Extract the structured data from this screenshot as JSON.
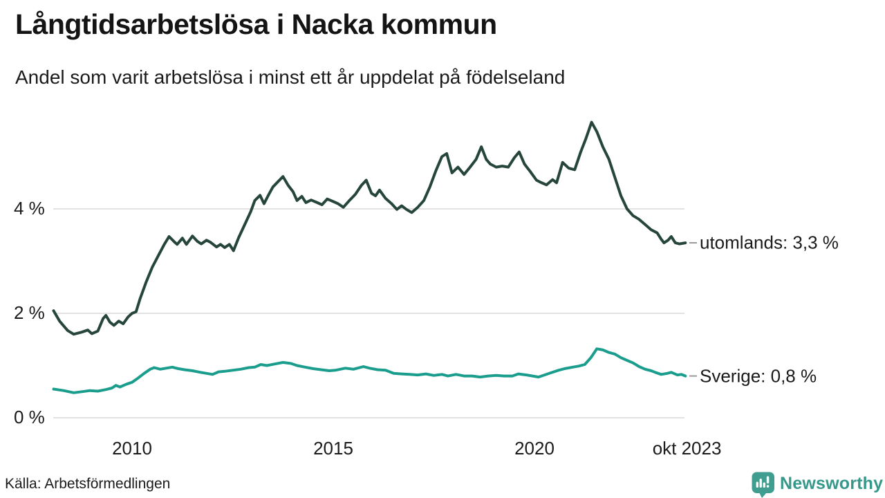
{
  "header": {
    "title": "Långtidsarbetslösa i Nacka kommun",
    "subtitle": "Andel som varit arbetslösa i minst ett år uppdelat på födelseland"
  },
  "footer": {
    "source": "Källa: Arbetsförmedlingen",
    "brand": "Newsworthy"
  },
  "colors": {
    "utomlands_line": "#26453b",
    "sverige_line": "#1a9d8d",
    "grid": "#e2e2e2",
    "text": "#1a1a1a",
    "label_dash": "#999999",
    "brand_teal": "#35988a"
  },
  "chart_data": {
    "type": "line",
    "title": "Långtidsarbetslösa i Nacka kommun",
    "subtitle": "Andel som varit arbetslösa i minst ett år uppdelat på födelseland",
    "xlabel": "",
    "ylabel": "",
    "unit": "%",
    "xlim": [
      2008.05,
      2023.79
    ],
    "ylim": [
      0,
      5.9
    ],
    "grid": "horizontal",
    "legend_position": "right-end-labels",
    "yticks": [
      {
        "value": 0,
        "label": "0 %"
      },
      {
        "value": 2,
        "label": "2 %"
      },
      {
        "value": 4,
        "label": "4 %"
      }
    ],
    "xticks": [
      {
        "value": 2010,
        "label": "2010"
      },
      {
        "value": 2015,
        "label": "2015"
      },
      {
        "value": 2020,
        "label": "2020"
      },
      {
        "value": 2023.79,
        "label": "okt 2023"
      }
    ],
    "series": [
      {
        "name": "utomlands",
        "end_label": "utomlands: 3,3 %",
        "last_value": "3,3 %",
        "color": "#26453b",
        "points": [
          [
            2008.05,
            2.05
          ],
          [
            2008.2,
            1.85
          ],
          [
            2008.4,
            1.67
          ],
          [
            2008.55,
            1.6
          ],
          [
            2008.75,
            1.64
          ],
          [
            2008.9,
            1.68
          ],
          [
            2009.0,
            1.61
          ],
          [
            2009.15,
            1.66
          ],
          [
            2009.28,
            1.9
          ],
          [
            2009.35,
            1.96
          ],
          [
            2009.45,
            1.83
          ],
          [
            2009.55,
            1.77
          ],
          [
            2009.67,
            1.85
          ],
          [
            2009.78,
            1.8
          ],
          [
            2009.9,
            1.93
          ],
          [
            2010.0,
            2.0
          ],
          [
            2010.1,
            2.03
          ],
          [
            2010.2,
            2.28
          ],
          [
            2010.35,
            2.6
          ],
          [
            2010.5,
            2.88
          ],
          [
            2010.65,
            3.1
          ],
          [
            2010.8,
            3.32
          ],
          [
            2010.92,
            3.47
          ],
          [
            2011.05,
            3.37
          ],
          [
            2011.12,
            3.32
          ],
          [
            2011.25,
            3.44
          ],
          [
            2011.35,
            3.32
          ],
          [
            2011.5,
            3.48
          ],
          [
            2011.62,
            3.38
          ],
          [
            2011.72,
            3.33
          ],
          [
            2011.85,
            3.4
          ],
          [
            2011.95,
            3.36
          ],
          [
            2012.1,
            3.27
          ],
          [
            2012.2,
            3.32
          ],
          [
            2012.3,
            3.26
          ],
          [
            2012.42,
            3.32
          ],
          [
            2012.52,
            3.2
          ],
          [
            2012.65,
            3.45
          ],
          [
            2012.8,
            3.7
          ],
          [
            2012.95,
            3.95
          ],
          [
            2013.05,
            4.16
          ],
          [
            2013.18,
            4.26
          ],
          [
            2013.28,
            4.1
          ],
          [
            2013.38,
            4.25
          ],
          [
            2013.5,
            4.42
          ],
          [
            2013.6,
            4.5
          ],
          [
            2013.75,
            4.62
          ],
          [
            2013.88,
            4.45
          ],
          [
            2014.0,
            4.33
          ],
          [
            2014.1,
            4.16
          ],
          [
            2014.22,
            4.24
          ],
          [
            2014.32,
            4.12
          ],
          [
            2014.45,
            4.17
          ],
          [
            2014.6,
            4.12
          ],
          [
            2014.72,
            4.08
          ],
          [
            2014.85,
            4.19
          ],
          [
            2015.0,
            4.14
          ],
          [
            2015.12,
            4.1
          ],
          [
            2015.25,
            4.03
          ],
          [
            2015.4,
            4.16
          ],
          [
            2015.55,
            4.28
          ],
          [
            2015.7,
            4.45
          ],
          [
            2015.82,
            4.55
          ],
          [
            2015.95,
            4.3
          ],
          [
            2016.05,
            4.25
          ],
          [
            2016.15,
            4.36
          ],
          [
            2016.3,
            4.2
          ],
          [
            2016.45,
            4.1
          ],
          [
            2016.58,
            3.99
          ],
          [
            2016.7,
            4.06
          ],
          [
            2016.82,
            3.99
          ],
          [
            2016.95,
            3.93
          ],
          [
            2017.1,
            4.03
          ],
          [
            2017.25,
            4.16
          ],
          [
            2017.4,
            4.42
          ],
          [
            2017.55,
            4.73
          ],
          [
            2017.7,
            5.0
          ],
          [
            2017.82,
            5.06
          ],
          [
            2017.95,
            4.69
          ],
          [
            2018.1,
            4.8
          ],
          [
            2018.25,
            4.66
          ],
          [
            2018.4,
            4.8
          ],
          [
            2018.55,
            4.95
          ],
          [
            2018.68,
            5.19
          ],
          [
            2018.8,
            4.95
          ],
          [
            2018.9,
            4.86
          ],
          [
            2019.05,
            4.8
          ],
          [
            2019.2,
            4.82
          ],
          [
            2019.35,
            4.8
          ],
          [
            2019.5,
            4.98
          ],
          [
            2019.62,
            5.09
          ],
          [
            2019.75,
            4.86
          ],
          [
            2019.9,
            4.71
          ],
          [
            2020.05,
            4.55
          ],
          [
            2020.15,
            4.51
          ],
          [
            2020.3,
            4.46
          ],
          [
            2020.45,
            4.56
          ],
          [
            2020.55,
            4.5
          ],
          [
            2020.7,
            4.89
          ],
          [
            2020.85,
            4.78
          ],
          [
            2021.0,
            4.75
          ],
          [
            2021.15,
            5.09
          ],
          [
            2021.28,
            5.35
          ],
          [
            2021.42,
            5.66
          ],
          [
            2021.55,
            5.48
          ],
          [
            2021.7,
            5.19
          ],
          [
            2021.85,
            4.95
          ],
          [
            2022.0,
            4.6
          ],
          [
            2022.15,
            4.25
          ],
          [
            2022.3,
            4.0
          ],
          [
            2022.45,
            3.87
          ],
          [
            2022.6,
            3.8
          ],
          [
            2022.75,
            3.7
          ],
          [
            2022.9,
            3.6
          ],
          [
            2023.05,
            3.54
          ],
          [
            2023.15,
            3.42
          ],
          [
            2023.22,
            3.35
          ],
          [
            2023.32,
            3.4
          ],
          [
            2023.4,
            3.47
          ],
          [
            2023.5,
            3.35
          ],
          [
            2023.6,
            3.33
          ],
          [
            2023.75,
            3.35
          ]
        ]
      },
      {
        "name": "Sverige",
        "end_label": "Sverige: 0,8 %",
        "last_value": "0,8 %",
        "color": "#1a9d8d",
        "points": [
          [
            2008.05,
            0.55
          ],
          [
            2008.3,
            0.52
          ],
          [
            2008.55,
            0.48
          ],
          [
            2008.75,
            0.5
          ],
          [
            2008.95,
            0.52
          ],
          [
            2009.15,
            0.51
          ],
          [
            2009.35,
            0.54
          ],
          [
            2009.5,
            0.57
          ],
          [
            2009.6,
            0.62
          ],
          [
            2009.7,
            0.59
          ],
          [
            2009.85,
            0.64
          ],
          [
            2010.0,
            0.68
          ],
          [
            2010.15,
            0.76
          ],
          [
            2010.3,
            0.85
          ],
          [
            2010.45,
            0.93
          ],
          [
            2010.55,
            0.96
          ],
          [
            2010.7,
            0.93
          ],
          [
            2010.85,
            0.95
          ],
          [
            2011.0,
            0.97
          ],
          [
            2011.15,
            0.94
          ],
          [
            2011.3,
            0.92
          ],
          [
            2011.5,
            0.9
          ],
          [
            2011.7,
            0.87
          ],
          [
            2011.85,
            0.85
          ],
          [
            2012.0,
            0.83
          ],
          [
            2012.15,
            0.88
          ],
          [
            2012.3,
            0.89
          ],
          [
            2012.5,
            0.91
          ],
          [
            2012.7,
            0.93
          ],
          [
            2012.9,
            0.96
          ],
          [
            2013.05,
            0.97
          ],
          [
            2013.2,
            1.02
          ],
          [
            2013.35,
            1.0
          ],
          [
            2013.55,
            1.03
          ],
          [
            2013.75,
            1.06
          ],
          [
            2013.95,
            1.04
          ],
          [
            2014.1,
            1.0
          ],
          [
            2014.3,
            0.97
          ],
          [
            2014.5,
            0.94
          ],
          [
            2014.7,
            0.92
          ],
          [
            2014.9,
            0.9
          ],
          [
            2015.05,
            0.91
          ],
          [
            2015.3,
            0.95
          ],
          [
            2015.5,
            0.93
          ],
          [
            2015.75,
            0.98
          ],
          [
            2015.9,
            0.95
          ],
          [
            2016.1,
            0.92
          ],
          [
            2016.3,
            0.91
          ],
          [
            2016.5,
            0.85
          ],
          [
            2016.7,
            0.84
          ],
          [
            2016.9,
            0.83
          ],
          [
            2017.1,
            0.82
          ],
          [
            2017.3,
            0.84
          ],
          [
            2017.5,
            0.81
          ],
          [
            2017.7,
            0.83
          ],
          [
            2017.85,
            0.8
          ],
          [
            2018.05,
            0.83
          ],
          [
            2018.25,
            0.8
          ],
          [
            2018.45,
            0.8
          ],
          [
            2018.65,
            0.78
          ],
          [
            2018.85,
            0.8
          ],
          [
            2019.05,
            0.81
          ],
          [
            2019.25,
            0.8
          ],
          [
            2019.45,
            0.8
          ],
          [
            2019.6,
            0.84
          ],
          [
            2019.8,
            0.82
          ],
          [
            2019.95,
            0.8
          ],
          [
            2020.1,
            0.78
          ],
          [
            2020.25,
            0.82
          ],
          [
            2020.4,
            0.86
          ],
          [
            2020.6,
            0.91
          ],
          [
            2020.75,
            0.94
          ],
          [
            2020.95,
            0.97
          ],
          [
            2021.1,
            0.99
          ],
          [
            2021.25,
            1.02
          ],
          [
            2021.4,
            1.15
          ],
          [
            2021.55,
            1.32
          ],
          [
            2021.7,
            1.3
          ],
          [
            2021.85,
            1.25
          ],
          [
            2022.0,
            1.22
          ],
          [
            2022.15,
            1.15
          ],
          [
            2022.3,
            1.1
          ],
          [
            2022.45,
            1.05
          ],
          [
            2022.6,
            0.98
          ],
          [
            2022.75,
            0.93
          ],
          [
            2022.9,
            0.9
          ],
          [
            2023.0,
            0.87
          ],
          [
            2023.15,
            0.83
          ],
          [
            2023.3,
            0.85
          ],
          [
            2023.4,
            0.87
          ],
          [
            2023.55,
            0.82
          ],
          [
            2023.65,
            0.83
          ],
          [
            2023.75,
            0.8
          ]
        ]
      }
    ]
  }
}
